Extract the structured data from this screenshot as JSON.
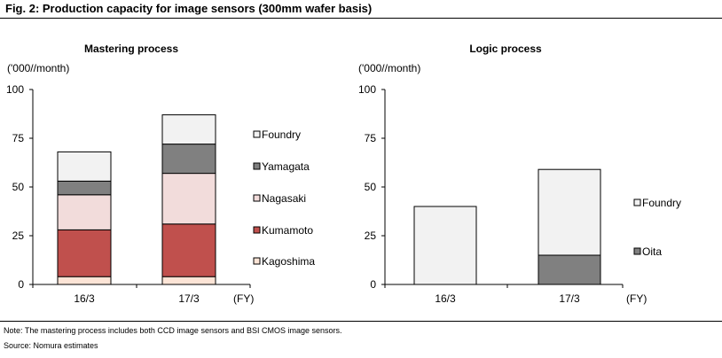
{
  "figure": {
    "title": "Fig. 2: Production capacity for image sensors (300mm wafer basis)",
    "note": "Note: The mastering process includes both CCD image sensors and BSI CMOS image sensors.",
    "source": "Source: Nomura estimates"
  },
  "chart_data": [
    {
      "type": "bar",
      "stacked": true,
      "title": "Mastering process",
      "ylabel": "('000//month)",
      "xlabel": "(FY)",
      "ylim": [
        0,
        100
      ],
      "yticks": [
        0,
        25,
        50,
        75,
        100
      ],
      "categories": [
        "16/3",
        "17/3"
      ],
      "legend_position": "right",
      "series": [
        {
          "name": "Kagoshima",
          "color": "#fce4d6",
          "values": [
            4,
            4
          ]
        },
        {
          "name": "Kumamoto",
          "color": "#c0504d",
          "values": [
            24,
            27
          ]
        },
        {
          "name": "Nagasaki",
          "color": "#f2dcdb",
          "values": [
            18,
            26
          ]
        },
        {
          "name": "Yamagata",
          "color": "#808080",
          "values": [
            7,
            15
          ]
        },
        {
          "name": "Foundry",
          "color": "#f2f2f2",
          "values": [
            15,
            15
          ]
        }
      ]
    },
    {
      "type": "bar",
      "stacked": true,
      "title": "Logic process",
      "ylabel": "('000//month)",
      "xlabel": "(FY)",
      "ylim": [
        0,
        100
      ],
      "yticks": [
        0,
        25,
        50,
        75,
        100
      ],
      "categories": [
        "16/3",
        "17/3"
      ],
      "legend_position": "right",
      "series": [
        {
          "name": "Oita",
          "color": "#808080",
          "values": [
            0,
            15
          ]
        },
        {
          "name": "Foundry",
          "color": "#f2f2f2",
          "values": [
            40,
            44
          ]
        }
      ]
    }
  ]
}
